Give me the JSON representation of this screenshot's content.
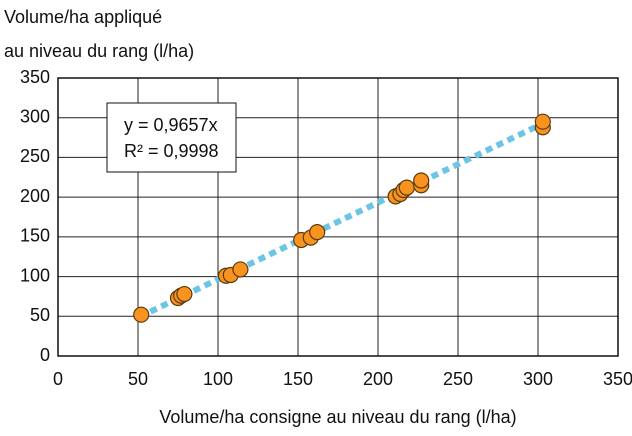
{
  "chart_data": {
    "type": "scatter",
    "y_label_lines": [
      "Volume/ha appliqué",
      "au niveau du rang (l/ha)"
    ],
    "x_label": "Volume/ha consigne au niveau du rang (l/ha)",
    "annotations": [
      "y = 0,9657x",
      "R² = 0,9998"
    ],
    "x": [
      52,
      75,
      77,
      79,
      105,
      108,
      114,
      152,
      158,
      162,
      211,
      214,
      216,
      218,
      227,
      227,
      303,
      303
    ],
    "values": [
      52,
      73,
      76,
      78,
      101,
      102,
      109,
      146,
      149,
      156,
      201,
      204,
      209,
      212,
      215,
      221,
      288,
      295
    ],
    "color": "#f7931e",
    "trendline": {
      "x": [
        51,
        304
      ],
      "y": [
        49.3,
        293.6
      ],
      "color": "#6cc5e5"
    },
    "xlim": [
      0,
      350
    ],
    "xticks": [
      0,
      50,
      100,
      150,
      200,
      250,
      300,
      350
    ],
    "ylim": [
      0,
      350
    ],
    "yticks": [
      0,
      50,
      100,
      150,
      200,
      250,
      300,
      350
    ],
    "grid": true
  }
}
